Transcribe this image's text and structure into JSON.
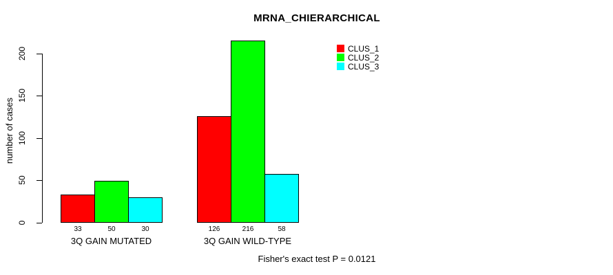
{
  "chart_data": {
    "type": "bar",
    "title": "MRNA_CHIERARCHICAL",
    "ylabel": "number of cases",
    "xlabel": "",
    "categories": [
      "3Q GAIN MUTATED",
      "3Q GAIN WILD-TYPE"
    ],
    "series": [
      {
        "name": "CLUS_1",
        "color": "#ff0000",
        "values": [
          33,
          126
        ]
      },
      {
        "name": "CLUS_2",
        "color": "#00ff00",
        "values": [
          50,
          216
        ]
      },
      {
        "name": "CLUS_3",
        "color": "#00ffff",
        "values": [
          30,
          58
        ]
      }
    ],
    "yticks": [
      0,
      50,
      100,
      150,
      200
    ],
    "ylim": [
      0,
      225
    ],
    "grid": false,
    "legend_position": "right-outside",
    "bar_border_color": "#000000",
    "axis_color": "#000000",
    "text_color": "#000000",
    "value_labels_shown": true,
    "annotation": "Fisher's exact test P = 0.0121"
  }
}
